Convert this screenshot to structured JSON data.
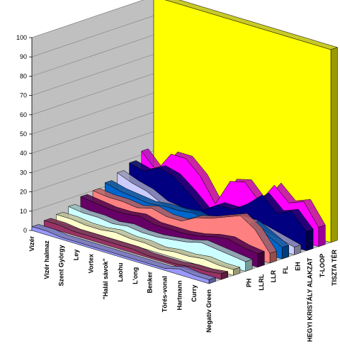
{
  "chart_data": {
    "type": "area3d",
    "categories": [
      "Vizér",
      "Vizér halmaz",
      "Szent György",
      "Ley",
      "Vortex",
      "\"Halál sávok\"",
      "Laohu",
      "L'ong",
      "Benker",
      "Törés-vonal",
      "Hartmann",
      "Curry",
      "Negatív Green"
    ],
    "series": [
      {
        "name": null,
        "color": "#9999FF",
        "values": [
          2,
          2,
          1,
          1,
          1,
          1,
          1,
          1,
          1,
          1,
          3,
          2,
          2
        ]
      },
      {
        "name": null,
        "color": "#993366",
        "values": [
          3,
          3,
          2,
          2,
          2,
          2,
          2,
          1,
          1,
          1,
          2,
          2,
          3
        ]
      },
      {
        "name": null,
        "color": "#FFFFCC",
        "values": [
          4,
          4,
          3,
          3,
          4,
          3,
          3,
          2,
          3,
          3,
          4,
          3,
          3
        ]
      },
      {
        "name": "PH",
        "color": "#CCFFFF",
        "values": [
          6,
          5,
          5,
          4,
          5,
          4,
          4,
          5,
          6,
          8,
          7,
          6,
          5
        ]
      },
      {
        "name": "LLRL",
        "color": "#660066",
        "values": [
          9,
          8,
          7,
          7,
          8,
          6,
          6,
          6,
          7,
          9,
          10,
          8,
          7
        ]
      },
      {
        "name": "LLR",
        "color": "#FF8080",
        "values": [
          10,
          9,
          9,
          8,
          10,
          8,
          8,
          12,
          14,
          17,
          20,
          15,
          5
        ]
      },
      {
        "name": "FL",
        "color": "#0066CC",
        "values": [
          12,
          10,
          9,
          8,
          9,
          9,
          10,
          8,
          10,
          9,
          14,
          10,
          6
        ]
      },
      {
        "name": "EH",
        "color": "#CCCCFF",
        "values": [
          15,
          12,
          10,
          6,
          5,
          4,
          3,
          6,
          10,
          10,
          8,
          6,
          4
        ]
      },
      {
        "name": "HEGYI KRISTÁLY ALAKZAT",
        "color": "#000080",
        "values": [
          18,
          16,
          20,
          18,
          12,
          5,
          10,
          10,
          15,
          22,
          15,
          18,
          10
        ]
      },
      {
        "name": "T-LOOP",
        "color": "#FF00FF",
        "values": [
          22,
          14,
          25,
          25,
          18,
          6,
          20,
          22,
          14,
          25,
          18,
          21,
          10
        ]
      },
      {
        "name": "TISZTA TÉR",
        "color": "#FFFF00",
        "values": [
          100,
          100,
          100,
          100,
          100,
          100,
          100,
          100,
          100,
          100,
          100,
          100,
          100
        ]
      }
    ],
    "ylim": [
      0,
      100
    ],
    "yticks": [
      0,
      10,
      20,
      30,
      40,
      50,
      60,
      70,
      80,
      90,
      100
    ],
    "grid": true
  }
}
